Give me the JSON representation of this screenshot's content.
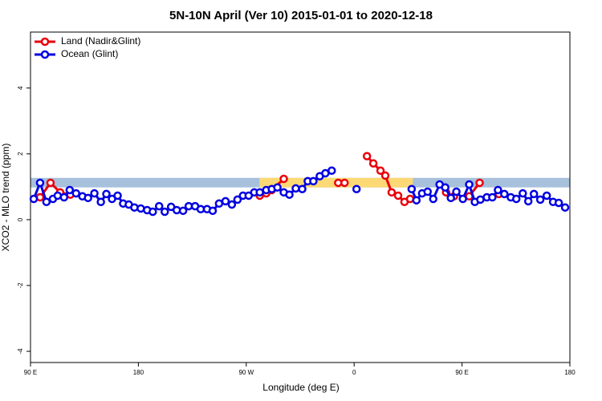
{
  "chart_data": {
    "type": "line",
    "title": "5N-10N April (Ver 10)   2015-01-01 to 2020-12-18",
    "x_label": "Longitude (deg E)",
    "y_label": "XCO2 - MLO trend (ppm)",
    "xlim": [
      90,
      540
    ],
    "ylim": [
      -4.34,
      5.7
    ],
    "xticks": [
      {
        "value": 90,
        "label": "90 E"
      },
      180,
      {
        "value": 270,
        "label": "90 W"
      },
      {
        "value": 360,
        "label": "0"
      },
      {
        "value": 450,
        "label": "90 E"
      },
      180
    ],
    "yticks": [
      -4,
      -2,
      0,
      2,
      4
    ],
    "band": {
      "range": [
        0.98,
        1.27
      ],
      "color": "#a7c0dc"
    },
    "highlight": {
      "xrange": [
        281,
        409
      ],
      "color": "#fcd975"
    },
    "legend": "top-left",
    "series": [
      {
        "name": "Land (Nadir&Glint)",
        "color": "#e8000b",
        "x": [
          98,
          106.7,
          114.7,
          123.3,
          null,
          281.3,
          286.7,
          291.3,
          301.3,
          null,
          346.7,
          352,
          null,
          370.7,
          376,
          382,
          386,
          391.3,
          396.7,
          402,
          406.7,
          null,
          436.7,
          443.3,
          null,
          456,
          464.7,
          null,
          480.7
        ],
        "values": [
          0.68,
          1.12,
          0.83,
          0.76,
          null,
          0.73,
          0.8,
          0.9,
          1.24,
          null,
          1.12,
          1.12,
          null,
          1.93,
          1.71,
          1.49,
          1.34,
          0.83,
          0.73,
          0.54,
          0.63,
          null,
          0.83,
          0.71,
          null,
          0.71,
          1.12,
          null,
          0.78
        ]
      },
      {
        "name": "Ocean (Glint)",
        "color": "#0000e0",
        "x": [
          92.7,
          98,
          103.3,
          108.7,
          112.7,
          118,
          122.7,
          128,
          133.3,
          138,
          143.3,
          148.7,
          153.3,
          158,
          162.7,
          167.3,
          172,
          176.7,
          182,
          187.3,
          192,
          197.3,
          202,
          207.3,
          212,
          217.3,
          222,
          227.3,
          232,
          237.3,
          242,
          247.3,
          252.7,
          258,
          262.7,
          267.3,
          272,
          276.7,
          281.3,
          286.7,
          291.3,
          296,
          301.3,
          306,
          311.3,
          316.7,
          321.3,
          326,
          331.3,
          336,
          341.3,
          null,
          362,
          null,
          408,
          412,
          416.7,
          421.3,
          426,
          431.3,
          436,
          440.7,
          445.3,
          450.7,
          456,
          460.7,
          465.3,
          470.7,
          475.3,
          480,
          485.3,
          490.7,
          495.3,
          500.7,
          505.3,
          510,
          515.3,
          520.7,
          526,
          530.7,
          536
        ],
        "values": [
          0.63,
          1.12,
          0.54,
          0.63,
          0.73,
          0.68,
          0.9,
          0.8,
          0.71,
          0.66,
          0.8,
          0.54,
          0.78,
          0.63,
          0.73,
          0.49,
          0.46,
          0.37,
          0.34,
          0.29,
          0.24,
          0.41,
          0.24,
          0.39,
          0.29,
          0.27,
          0.41,
          0.41,
          0.32,
          0.32,
          0.27,
          0.49,
          0.56,
          0.46,
          0.61,
          0.73,
          0.73,
          0.83,
          0.83,
          0.9,
          0.93,
          0.98,
          0.83,
          0.76,
          0.95,
          0.93,
          1.17,
          1.17,
          1.32,
          1.41,
          1.49,
          null,
          0.93,
          null,
          0.93,
          0.59,
          0.8,
          0.85,
          0.63,
          1.07,
          0.98,
          0.66,
          0.85,
          0.63,
          1.07,
          0.54,
          0.61,
          0.68,
          0.68,
          0.9,
          0.78,
          0.68,
          0.63,
          0.8,
          0.56,
          0.78,
          0.61,
          0.73,
          0.54,
          0.51,
          0.37
        ]
      }
    ]
  }
}
